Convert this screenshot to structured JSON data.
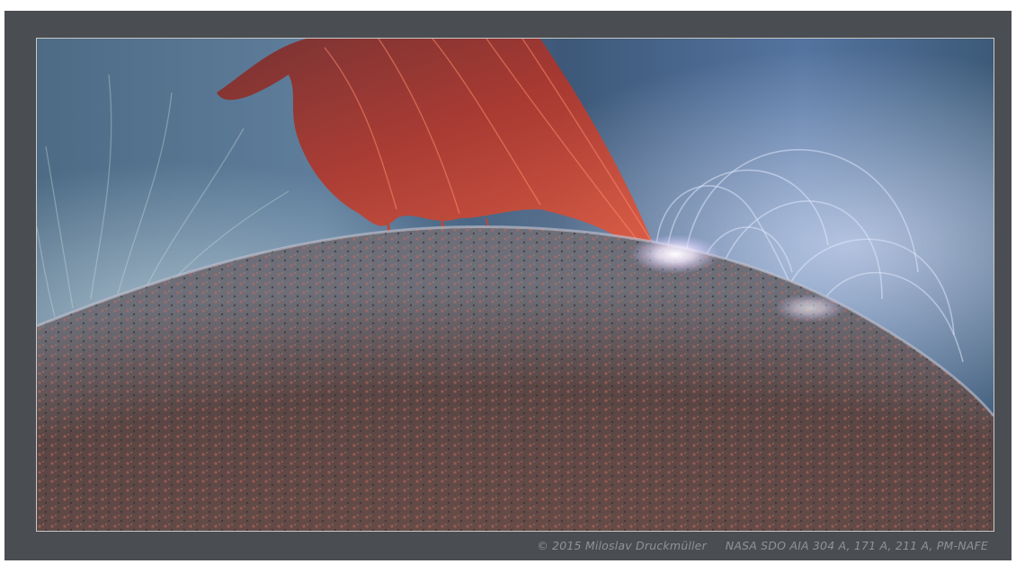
{
  "image": {
    "subject": "solar-prominence",
    "colors": {
      "frame": "#4a4d51",
      "border": "#c9c9c9",
      "sky_blue": "#6d8fb5",
      "sky_dark": "#2a3f55",
      "prominence": "#b3362a",
      "surface": "#5a4644",
      "loops": "#d9e6ff"
    }
  },
  "caption": {
    "copyright": "© 2015 Miloslav Druckmüller",
    "source": "NASA SDO AIA 304 A, 171 A, 211 A, PM-NAFE"
  }
}
